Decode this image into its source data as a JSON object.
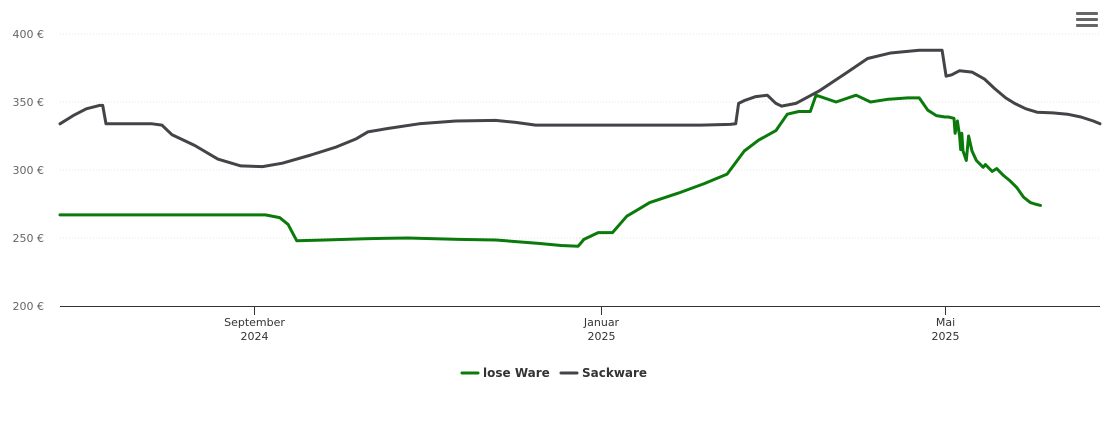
{
  "menu": {
    "icon": "hamburger-menu-icon"
  },
  "chart_data": {
    "type": "line",
    "currency_suffix": " €",
    "ylim": [
      200,
      400
    ],
    "yticks": [
      200,
      250,
      300,
      350,
      400
    ],
    "ytick_labels": [
      "200 €",
      "250 €",
      "300 €",
      "350 €",
      "400 €"
    ],
    "xlim": [
      "2024-07-04",
      "2025-06-16"
    ],
    "xticks": [
      {
        "date": "2024-09-01",
        "label": "September",
        "year": "2024"
      },
      {
        "date": "2025-01-01",
        "label": "Januar",
        "year": "2025"
      },
      {
        "date": "2025-05-01",
        "label": "Mai",
        "year": "2025"
      }
    ],
    "grid": true,
    "legend_position": "bottom-center",
    "series": [
      {
        "name": "lose Ware",
        "color": "#0a7a0a",
        "points": [
          [
            "2024-07-04",
            267
          ],
          [
            "2024-09-05",
            267
          ],
          [
            "2024-09-10",
            265
          ],
          [
            "2024-09-13",
            260
          ],
          [
            "2024-09-16",
            248
          ],
          [
            "2024-09-26",
            248.5
          ],
          [
            "2024-10-10",
            249.5
          ],
          [
            "2024-10-25",
            250
          ],
          [
            "2024-11-12",
            249
          ],
          [
            "2024-11-25",
            248.5
          ],
          [
            "2024-12-10",
            246
          ],
          [
            "2024-12-18",
            244.5
          ],
          [
            "2024-12-24",
            244
          ],
          [
            "2024-12-26",
            249
          ],
          [
            "2024-12-31",
            254
          ],
          [
            "2025-01-05",
            254
          ],
          [
            "2025-01-10",
            266
          ],
          [
            "2025-01-18",
            276
          ],
          [
            "2025-01-28",
            283
          ],
          [
            "2025-02-06",
            290
          ],
          [
            "2025-02-14",
            297
          ],
          [
            "2025-02-20",
            314
          ],
          [
            "2025-02-25",
            322
          ],
          [
            "2025-03-03",
            329
          ],
          [
            "2025-03-07",
            341
          ],
          [
            "2025-03-11",
            343
          ],
          [
            "2025-03-15",
            343
          ],
          [
            "2025-03-17",
            355
          ],
          [
            "2025-03-24",
            350
          ],
          [
            "2025-03-31",
            355
          ],
          [
            "2025-04-05",
            350
          ],
          [
            "2025-04-11",
            352
          ],
          [
            "2025-04-18",
            353
          ],
          [
            "2025-04-22",
            353
          ],
          [
            "2025-04-25",
            344
          ],
          [
            "2025-05-01",
            339
          ],
          [
            "2025-05-09",
            338
          ],
          [
            "2025-05-12",
            336
          ],
          [
            "2025-05-16",
            327
          ],
          [
            "2025-05-22",
            325
          ],
          [
            "2025-05-25",
            314
          ],
          [
            "2025-05-29",
            307
          ],
          [
            "2025-06-06",
            304
          ],
          [
            "2025-06-16",
            301
          ],
          [
            "2025-04-28",
            340
          ],
          [
            "2025-05-04",
            339
          ]
        ],
        "tail": [
          [
            "2025-05-10",
            327
          ],
          [
            "2025-05-14",
            325
          ],
          [
            "2025-05-15",
            315
          ],
          [
            "2025-05-17",
            314
          ],
          [
            "2025-05-20",
            307
          ],
          [
            "2025-05-25",
            305
          ],
          [
            "2025-06-04",
            302
          ],
          [
            "2025-06-12",
            299
          ],
          [
            "2025-06-22",
            296
          ],
          [
            "2025-06-28",
            292
          ],
          [
            "2025-07-04",
            287
          ],
          [
            "2025-07-10",
            280
          ],
          [
            "2025-07-16",
            276
          ],
          [
            "2025-07-20",
            275
          ],
          [
            "2025-07-25",
            274
          ]
        ]
      },
      {
        "name": "Sackware",
        "color": "#434348",
        "points": [
          [
            "2024-07-04",
            334
          ],
          [
            "2024-07-08",
            340
          ],
          [
            "2024-07-12",
            345
          ],
          [
            "2024-07-16",
            347.5
          ],
          [
            "2024-07-17",
            347.5
          ],
          [
            "2024-07-18",
            334
          ],
          [
            "2024-08-01",
            334
          ],
          [
            "2024-08-04",
            333
          ],
          [
            "2024-08-07",
            326
          ],
          [
            "2024-08-14",
            318
          ],
          [
            "2024-08-21",
            308
          ],
          [
            "2024-08-28",
            303
          ],
          [
            "2024-09-04",
            302.5
          ],
          [
            "2024-09-11",
            305
          ],
          [
            "2024-09-21",
            311
          ],
          [
            "2024-09-30",
            317
          ],
          [
            "2024-10-07",
            323
          ],
          [
            "2024-10-11",
            328
          ],
          [
            "2024-10-18",
            330.5
          ],
          [
            "2024-10-29",
            334
          ],
          [
            "2024-11-11",
            336
          ],
          [
            "2024-11-25",
            336.5
          ],
          [
            "2024-12-02",
            335
          ],
          [
            "2024-12-09",
            333
          ],
          [
            "2024-12-20",
            333
          ],
          [
            "2025-01-15",
            333
          ],
          [
            "2025-02-05",
            333
          ],
          [
            "2025-02-15",
            333.5
          ],
          [
            "2025-02-17",
            334
          ],
          [
            "2025-02-18",
            349
          ],
          [
            "2025-02-20",
            351
          ],
          [
            "2025-02-24",
            354
          ],
          [
            "2025-02-28",
            355
          ],
          [
            "2025-03-03",
            349
          ],
          [
            "2025-03-05",
            347
          ],
          [
            "2025-03-10",
            349
          ],
          [
            "2025-03-18",
            358
          ],
          [
            "2025-03-28",
            372
          ],
          [
            "2025-04-04",
            382
          ],
          [
            "2025-04-12",
            386
          ],
          [
            "2025-04-22",
            388
          ],
          [
            "2025-04-30",
            388
          ],
          [
            "2025-05-02",
            369
          ],
          [
            "2025-05-07",
            370
          ],
          [
            "2025-05-14",
            373
          ],
          [
            "2025-05-25",
            372
          ],
          [
            "2025-06-05",
            367
          ],
          [
            "2025-06-14",
            360
          ]
        ],
        "tail": [
          [
            "2025-06-24",
            353
          ],
          [
            "2025-07-02",
            349
          ],
          [
            "2025-07-12",
            345
          ],
          [
            "2025-07-22",
            342.5
          ],
          [
            "2025-08-05",
            342
          ],
          [
            "2025-08-18",
            341
          ],
          [
            "2025-08-30",
            339
          ],
          [
            "2025-09-10",
            336
          ],
          [
            "2025-09-16",
            334
          ]
        ]
      }
    ]
  }
}
